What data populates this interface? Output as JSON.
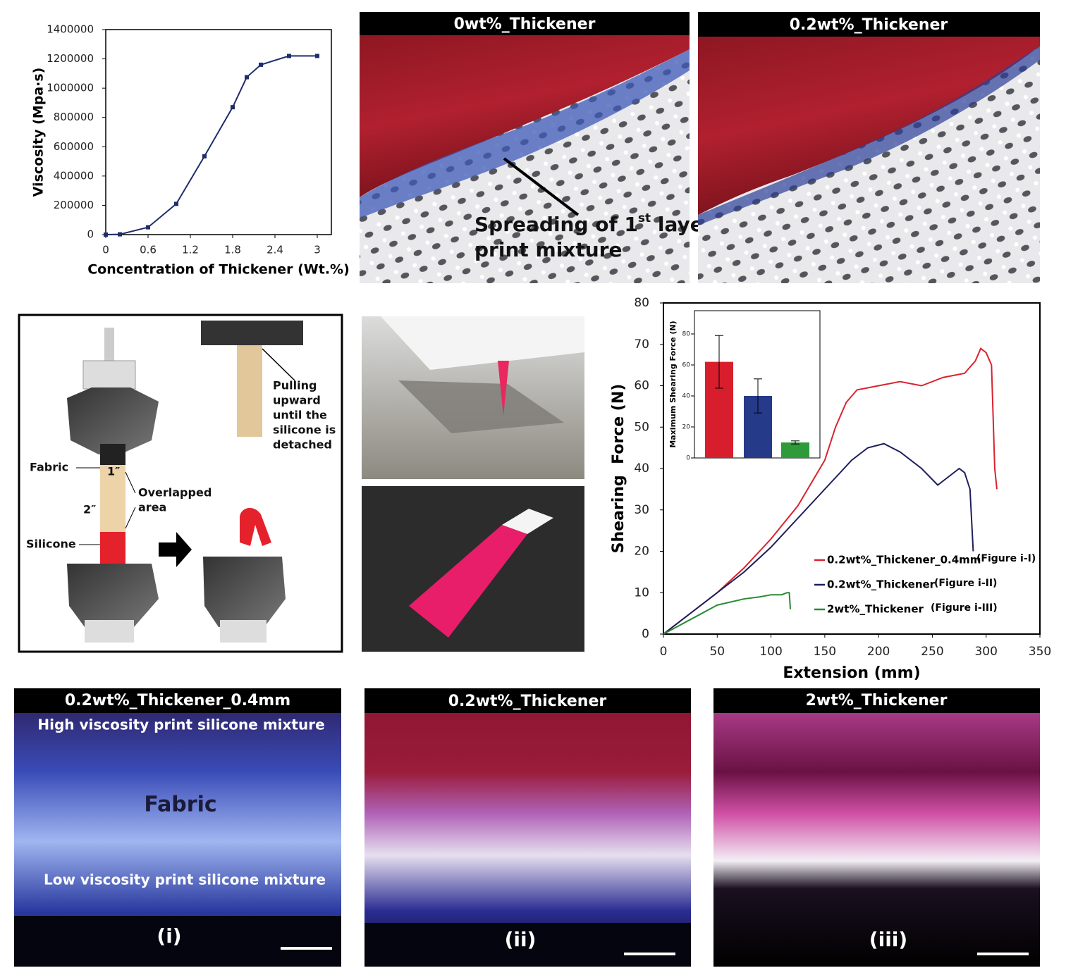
{
  "chart_data": [
    {
      "type": "line",
      "ylabel": "Viscosity (Mpa·s)",
      "xlabel": "Concentration of Thickener (Wt.%)",
      "x": [
        0,
        0.2,
        0.6,
        1.0,
        1.4,
        1.8,
        2.0,
        2.2,
        2.6,
        3.0
      ],
      "values": [
        0,
        2000,
        50000,
        210000,
        535000,
        870000,
        1075000,
        1160000,
        1220000,
        1220000
      ],
      "color": "#1f2d6b",
      "markers": true,
      "xlim": [
        0,
        3.2
      ],
      "xticks": [
        0,
        0.6,
        1.2,
        1.8,
        2.4,
        3
      ],
      "ylim": [
        0,
        1400000
      ],
      "yticks": [
        0,
        200000,
        400000,
        600000,
        800000,
        1000000,
        1200000,
        1400000
      ]
    },
    {
      "type": "line",
      "ylabel": "Shearing  Force (N)",
      "xlabel": "Extension (mm)",
      "series": [
        {
          "name": "0.2wt%_Thickener_0.4mm",
          "note": "(Figure i-I)",
          "color": "#d9232e",
          "x": [
            0,
            25,
            50,
            75,
            100,
            125,
            150,
            160,
            170,
            180,
            200,
            220,
            240,
            260,
            280,
            290,
            295,
            300,
            305,
            308,
            310
          ],
          "values": [
            0,
            5,
            10,
            16,
            23,
            31,
            42,
            50,
            56,
            59,
            60,
            61,
            60,
            62,
            63,
            66,
            69,
            68,
            65,
            40,
            35
          ]
        },
        {
          "name": "0.2wt%_Thickener",
          "note": "(Figure i-II)",
          "color": "#1c1f5a",
          "x": [
            0,
            25,
            50,
            75,
            100,
            125,
            150,
            175,
            190,
            205,
            220,
            240,
            255,
            265,
            275,
            280,
            285,
            288
          ],
          "values": [
            0,
            5,
            10,
            15,
            21,
            28,
            35,
            42,
            45,
            46,
            44,
            40,
            36,
            38,
            40,
            39,
            35,
            20
          ]
        },
        {
          "name": "2wt%_Thickener",
          "note": "(Figure i-III)",
          "color": "#2a8a34",
          "x": [
            0,
            25,
            50,
            75,
            90,
            100,
            110,
            115,
            117,
            118
          ],
          "values": [
            0,
            3.5,
            7,
            8.5,
            9,
            9.5,
            9.5,
            10,
            10,
            6
          ]
        }
      ],
      "xlim": [
        0,
        350
      ],
      "xticks": [
        0,
        50,
        100,
        150,
        200,
        250,
        300,
        350
      ],
      "ylim": [
        0,
        80
      ],
      "yticks": [
        0,
        10,
        20,
        30,
        40,
        50,
        60,
        70,
        80
      ]
    },
    {
      "type": "bar",
      "ylabel": "Maximum Shearing Force (N)",
      "categories": [
        null,
        null,
        null
      ],
      "values": [
        62,
        40,
        10
      ],
      "errors": [
        17,
        11,
        1
      ],
      "colors": [
        "#d81e2c",
        "#263a8a",
        "#2e9a3a"
      ],
      "ylim": [
        0,
        95
      ],
      "yticks": [
        0,
        20,
        40,
        60,
        80
      ]
    }
  ],
  "photos": {
    "top": [
      {
        "title": "0wt%_Thickener",
        "annotation": [
          "Spreading of 1",
          "st",
          " layer",
          "print mixture"
        ]
      },
      {
        "title": "0.2wt%_Thickener"
      }
    ],
    "bottom": [
      {
        "title": "0.2wt%_Thickener_0.4mm",
        "label": "(i)",
        "annotations": [
          "High viscosity print silicone mixture",
          "Fabric",
          "Low viscosity print silicone mixture"
        ]
      },
      {
        "title": "0.2wt%_Thickener",
        "label": "(ii)"
      },
      {
        "title": "2wt%_Thickener",
        "label": "(iii)"
      }
    ]
  },
  "diagram": {
    "pull_note": [
      "Pulling",
      "upward",
      "until the",
      "silicone is",
      "detached"
    ],
    "fabric": "Fabric",
    "one_inch": "1″",
    "two_inch": "2″",
    "overlap": [
      "Overlapped",
      "area"
    ],
    "silicone": "Silicone"
  }
}
